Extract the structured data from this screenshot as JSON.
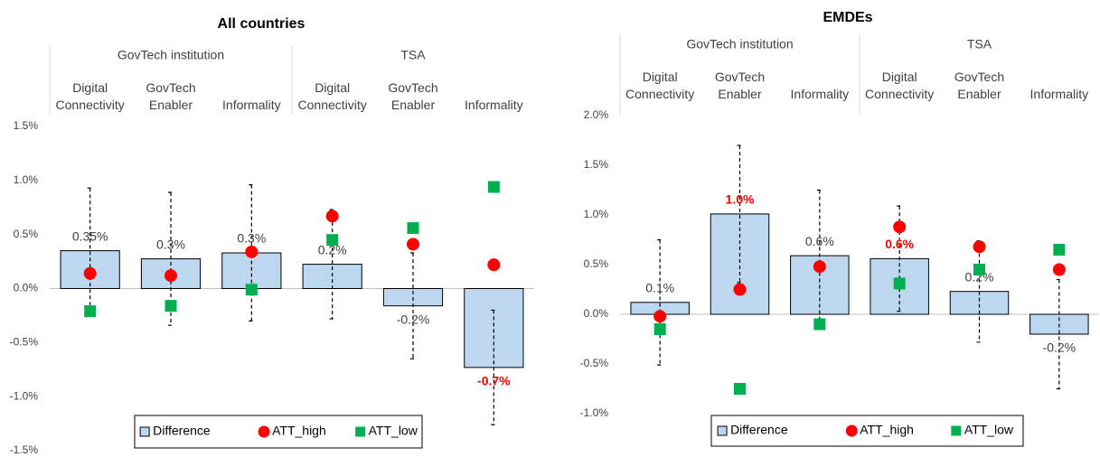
{
  "chart_data": [
    {
      "type": "bar",
      "title": "All countries",
      "groups": [
        {
          "name": "GovTech institution",
          "categories": [
            "Digital Connectivity",
            "GovTech Enabler",
            "Informality"
          ]
        },
        {
          "name": "TSA",
          "categories": [
            "Digital Connectivity",
            "GovTech Enabler",
            "Informality"
          ]
        }
      ],
      "series": [
        {
          "name": "Difference",
          "type": "bar",
          "color": "#bdd7ee",
          "values": [
            0.35,
            0.275,
            0.33,
            0.225,
            -0.16,
            -0.73
          ],
          "value_labels": [
            "0.35%",
            "0.3%",
            "0.3%",
            "0.2%",
            "-0.2%",
            "-0.7%"
          ],
          "label_colors": [
            "#404040",
            "#404040",
            "#404040",
            "#404040",
            "#404040",
            "#ff0000"
          ],
          "label_bold": [
            false,
            false,
            false,
            false,
            false,
            true
          ],
          "errors": [
            0.58,
            0.615,
            0.63,
            0.505,
            0.49,
            0.53
          ]
        },
        {
          "name": "ATT_high",
          "type": "circle",
          "color": "#ff0000",
          "values": [
            0.14,
            0.12,
            0.34,
            0.67,
            0.41,
            0.22
          ]
        },
        {
          "name": "ATT_low",
          "type": "square",
          "color": "#00b050",
          "values": [
            -0.21,
            -0.16,
            -0.01,
            0.45,
            0.56,
            0.94
          ]
        }
      ],
      "ylim": [
        -1.5,
        1.5
      ],
      "yticks": [
        {
          "value": -1.5,
          "label": "-1.5%"
        },
        {
          "value": -1.0,
          "label": "-1.0%"
        },
        {
          "value": -0.5,
          "label": "-0.5%"
        },
        {
          "value": 0,
          "label": "0.0%"
        },
        {
          "value": 0.5,
          "label": "0.5%"
        },
        {
          "value": 1.0,
          "label": "1.0%"
        },
        {
          "value": 1.5,
          "label": "1.5%"
        }
      ],
      "legend": "bottom"
    },
    {
      "type": "bar",
      "title": "EMDEs",
      "groups": [
        {
          "name": "GovTech institution",
          "categories": [
            "Digital Connectivity",
            "GovTech Enabler",
            "Informality"
          ]
        },
        {
          "name": "TSA",
          "categories": [
            "Digital Connectivity",
            "GovTech Enabler",
            "Informality"
          ]
        }
      ],
      "series": [
        {
          "name": "Difference",
          "type": "bar",
          "color": "#bdd7ee",
          "values": [
            0.12,
            1.01,
            0.59,
            0.56,
            0.23,
            -0.2
          ],
          "value_labels": [
            "0.1%",
            "1.0%",
            "0.6%",
            "0.6%",
            "0.2%",
            "-0.2%"
          ],
          "label_colors": [
            "#404040",
            "#ff0000",
            "#404040",
            "#ff0000",
            "#404040",
            "#404040"
          ],
          "label_bold": [
            false,
            true,
            false,
            true,
            false,
            false
          ],
          "errors": [
            0.63,
            0.69,
            0.66,
            0.53,
            0.51,
            0.55
          ]
        },
        {
          "name": "ATT_high",
          "type": "circle",
          "color": "#ff0000",
          "values": [
            -0.02,
            0.25,
            0.48,
            0.88,
            0.68,
            0.45
          ]
        },
        {
          "name": "ATT_low",
          "type": "square",
          "color": "#00b050",
          "values": [
            -0.15,
            -0.75,
            -0.1,
            0.31,
            0.45,
            0.65
          ]
        }
      ],
      "ylim": [
        -1.0,
        2.0
      ],
      "yticks": [
        {
          "value": -1.0,
          "label": "-1.0%"
        },
        {
          "value": -0.5,
          "label": "-0.5%"
        },
        {
          "value": 0,
          "label": "0.0%"
        },
        {
          "value": 0.5,
          "label": "0.5%"
        },
        {
          "value": 1.0,
          "label": "1.0%"
        },
        {
          "value": 1.5,
          "label": "1.5%"
        },
        {
          "value": 2.0,
          "label": "2.0%"
        }
      ],
      "legend": "bottom"
    }
  ]
}
